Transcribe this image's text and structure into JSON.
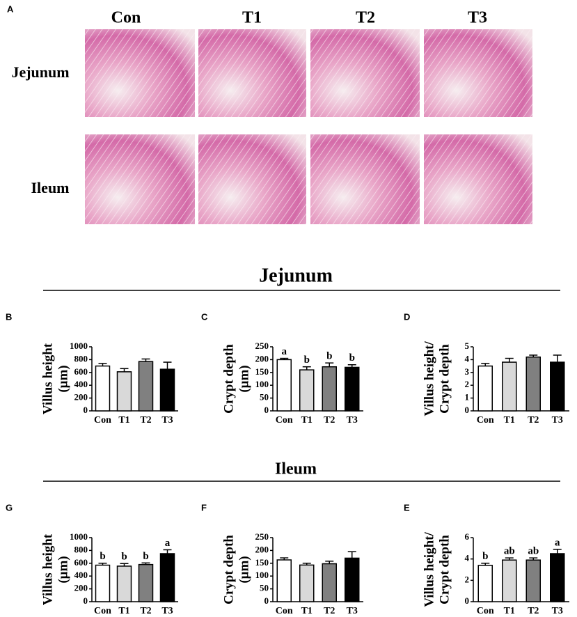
{
  "panel_a": {
    "panel": "A",
    "columns": [
      "Con",
      "T1",
      "T2",
      "T3"
    ],
    "rows": [
      "Jejunum",
      "Ileum"
    ]
  },
  "sections": [
    "Jejunum",
    "Ileum"
  ],
  "chart_data": [
    {
      "type": "bar",
      "panel": "B",
      "ylabel": [
        "Villus height",
        "(μm)"
      ],
      "categories": [
        "Con",
        "T1",
        "T2",
        "T3"
      ],
      "values": [
        700,
        610,
        770,
        650
      ],
      "errors": [
        40,
        50,
        40,
        110
      ],
      "colors": [
        "#ffffff",
        "#d9d9d9",
        "#808080",
        "#000000"
      ],
      "ylim": [
        0,
        1000
      ],
      "yticks": [
        0,
        200,
        400,
        600,
        800,
        1000
      ]
    },
    {
      "type": "bar",
      "panel": "C",
      "ylabel": [
        "Crypt depth",
        "(μm)"
      ],
      "categories": [
        "Con",
        "T1",
        "T2",
        "T3"
      ],
      "values": [
        200,
        160,
        172,
        170
      ],
      "errors": [
        5,
        12,
        15,
        10
      ],
      "annotations": [
        "a",
        "b",
        "b",
        "b"
      ],
      "colors": [
        "#ffffff",
        "#d9d9d9",
        "#808080",
        "#000000"
      ],
      "ylim": [
        0,
        250
      ],
      "yticks": [
        0,
        50,
        100,
        150,
        200,
        250
      ]
    },
    {
      "type": "bar",
      "panel": "D",
      "ylabel": [
        "Villus height/",
        "Crypt depth"
      ],
      "categories": [
        "Con",
        "T1",
        "T2",
        "T3"
      ],
      "values": [
        3.5,
        3.8,
        4.2,
        3.8
      ],
      "errors": [
        0.2,
        0.3,
        0.15,
        0.55
      ],
      "colors": [
        "#ffffff",
        "#d9d9d9",
        "#808080",
        "#000000"
      ],
      "ylim": [
        0,
        5
      ],
      "yticks": [
        0,
        1,
        2,
        3,
        4,
        5
      ]
    },
    {
      "type": "bar",
      "panel": "G",
      "ylabel": [
        "Villus height",
        "(μm)"
      ],
      "categories": [
        "Con",
        "T1",
        "T2",
        "T3"
      ],
      "values": [
        570,
        555,
        580,
        750
      ],
      "errors": [
        30,
        40,
        25,
        60
      ],
      "annotations": [
        "b",
        "b",
        "b",
        "a"
      ],
      "colors": [
        "#ffffff",
        "#d9d9d9",
        "#808080",
        "#000000"
      ],
      "ylim": [
        0,
        1000
      ],
      "yticks": [
        0,
        200,
        400,
        600,
        800,
        1000
      ]
    },
    {
      "type": "bar",
      "panel": "F",
      "ylabel": [
        "Crypt depth",
        "(μm)"
      ],
      "categories": [
        "Con",
        "T1",
        "T2",
        "T3"
      ],
      "values": [
        163,
        143,
        148,
        170
      ],
      "errors": [
        8,
        7,
        10,
        25
      ],
      "colors": [
        "#ffffff",
        "#d9d9d9",
        "#808080",
        "#000000"
      ],
      "ylim": [
        0,
        250
      ],
      "yticks": [
        0,
        50,
        100,
        150,
        200,
        250
      ]
    },
    {
      "type": "bar",
      "panel": "E",
      "ylabel": [
        "Villus height/",
        "Crypt depth"
      ],
      "categories": [
        "Con",
        "T1",
        "T2",
        "T3"
      ],
      "values": [
        3.4,
        3.9,
        3.9,
        4.5
      ],
      "errors": [
        0.2,
        0.2,
        0.2,
        0.4
      ],
      "annotations": [
        "b",
        "ab",
        "ab",
        "a"
      ],
      "colors": [
        "#ffffff",
        "#d9d9d9",
        "#808080",
        "#000000"
      ],
      "ylim": [
        0,
        6
      ],
      "yticks": [
        0,
        2,
        4,
        6
      ]
    }
  ]
}
